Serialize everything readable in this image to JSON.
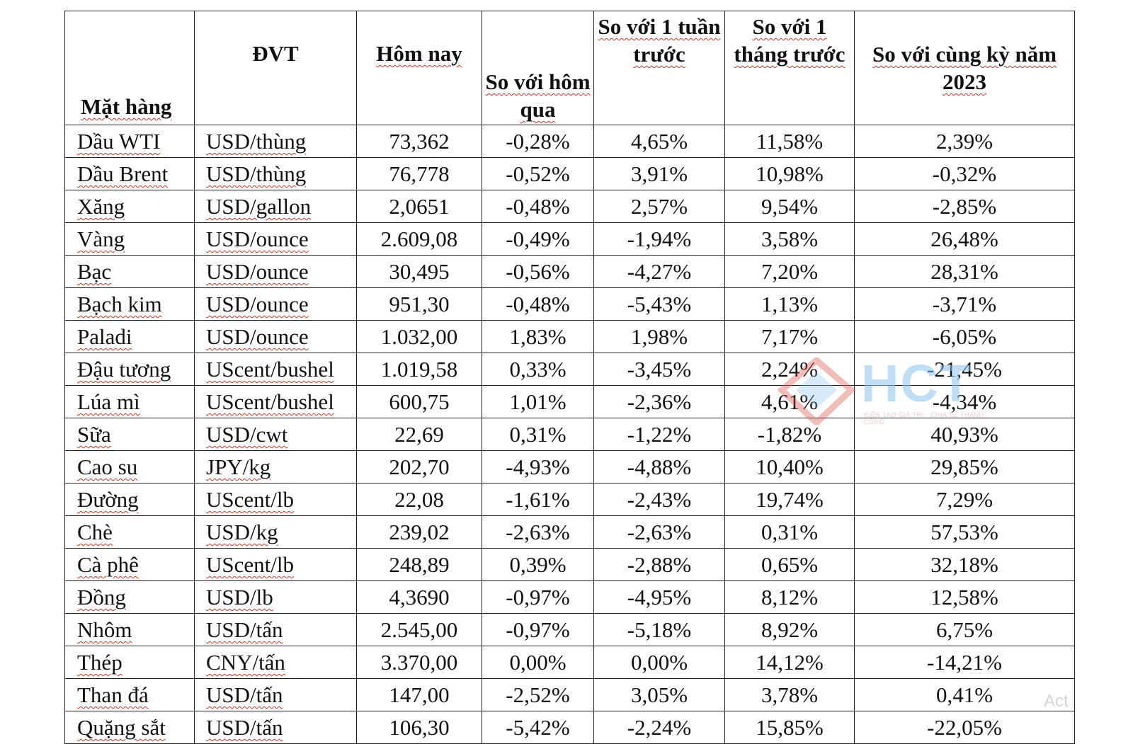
{
  "table": {
    "headers": {
      "item": "Mặt hàng",
      "unit": "ĐVT",
      "today": "Hôm nay",
      "vs_yesterday": "So với hôm qua",
      "vs_week": "So với 1 tuần trước",
      "vs_month": "So với 1 tháng trước",
      "vs_2023": "So với cùng kỳ năm 2023"
    },
    "rows": [
      {
        "item": "Dầu WTI",
        "unit": "USD/thùng",
        "today": "73,362",
        "d1": "-0,28%",
        "w1": "4,65%",
        "m1": "11,58%",
        "y": "2,39%"
      },
      {
        "item": "Dầu Brent",
        "unit": "USD/thùng",
        "today": "76,778",
        "d1": "-0,52%",
        "w1": "3,91%",
        "m1": "10,98%",
        "y": "-0,32%"
      },
      {
        "item": "Xăng",
        "unit": "USD/gallon",
        "today": "2,0651",
        "d1": "-0,48%",
        "w1": "2,57%",
        "m1": "9,54%",
        "y": "-2,85%"
      },
      {
        "item": "Vàng",
        "unit": "USD/ounce",
        "today": "2.609,08",
        "d1": "-0,49%",
        "w1": "-1,94%",
        "m1": "3,58%",
        "y": "26,48%"
      },
      {
        "item": "Bạc",
        "unit": "USD/ounce",
        "today": "30,495",
        "d1": "-0,56%",
        "w1": "-4,27%",
        "m1": "7,20%",
        "y": "28,31%"
      },
      {
        "item": "Bạch kim",
        "unit": "USD/ounce",
        "today": "951,30",
        "d1": "-0,48%",
        "w1": "-5,43%",
        "m1": "1,13%",
        "y": "-3,71%"
      },
      {
        "item": "Paladi",
        "unit": "USD/ounce",
        "today": "1.032,00",
        "d1": "1,83%",
        "w1": "1,98%",
        "m1": "7,17%",
        "y": "-6,05%"
      },
      {
        "item": "Đậu tương",
        "unit": "UScent/bushel",
        "today": "1.019,58",
        "d1": "0,33%",
        "w1": "-3,45%",
        "m1": "2,24%",
        "y": "-21,45%"
      },
      {
        "item": "Lúa mì",
        "unit": "UScent/bushel",
        "today": "600,75",
        "d1": "1,01%",
        "w1": "-2,36%",
        "m1": "4,61%",
        "y": "-4,34%"
      },
      {
        "item": "Sữa",
        "unit": "USD/cwt",
        "today": "22,69",
        "d1": "0,31%",
        "w1": "-1,22%",
        "m1": "-1,82%",
        "y": "40,93%"
      },
      {
        "item": "Cao su",
        "unit": "JPY/kg",
        "today": "202,70",
        "d1": "-4,93%",
        "w1": "-4,88%",
        "m1": "10,40%",
        "y": "29,85%"
      },
      {
        "item": "Đường",
        "unit": "UScent/lb",
        "today": "22,08",
        "d1": "-1,61%",
        "w1": "-2,43%",
        "m1": "19,74%",
        "y": "7,29%"
      },
      {
        "item": "Chè",
        "unit": "USD/kg",
        "today": "239,02",
        "d1": "-2,63%",
        "w1": "-2,63%",
        "m1": "0,31%",
        "y": "57,53%"
      },
      {
        "item": "Cà phê",
        "unit": "UScent/lb",
        "today": "248,89",
        "d1": "0,39%",
        "w1": "-2,88%",
        "m1": "0,65%",
        "y": "32,18%"
      },
      {
        "item": "Đồng",
        "unit": "USD/lb",
        "today": "4,3690",
        "d1": "-0,97%",
        "w1": "-4,95%",
        "m1": "8,12%",
        "y": "12,58%"
      },
      {
        "item": "Nhôm",
        "unit": "USD/tấn",
        "today": "2.545,00",
        "d1": "-0,97%",
        "w1": "-5,18%",
        "m1": "8,92%",
        "y": "6,75%"
      },
      {
        "item": "Thép",
        "unit": "CNY/tấn",
        "today": "3.370,00",
        "d1": "0,00%",
        "w1": "0,00%",
        "m1": "14,12%",
        "y": "-14,21%"
      },
      {
        "item": "Than đá",
        "unit": "USD/tấn",
        "today": "147,00",
        "d1": "-2,52%",
        "w1": "3,05%",
        "m1": "3,78%",
        "y": "0,41%"
      },
      {
        "item": "Quặng sắt",
        "unit": "USD/tấn",
        "today": "106,30",
        "d1": "-5,42%",
        "w1": "-2,24%",
        "m1": "15,85%",
        "y": "-22,05%"
      }
    ]
  },
  "watermark": {
    "brand": "HCT",
    "tagline": "KIẾN TẠO GIÁ TRỊ - CHIA SẺ THÀNH CÔNG",
    "colors": {
      "text": "#8ec3ef",
      "mark_red": "#d9534f",
      "mark_blue": "#7fb8ea"
    }
  },
  "corner_text": "Act",
  "colors": {
    "border": "#222222",
    "spellcheck_underline": "#c0392b"
  }
}
